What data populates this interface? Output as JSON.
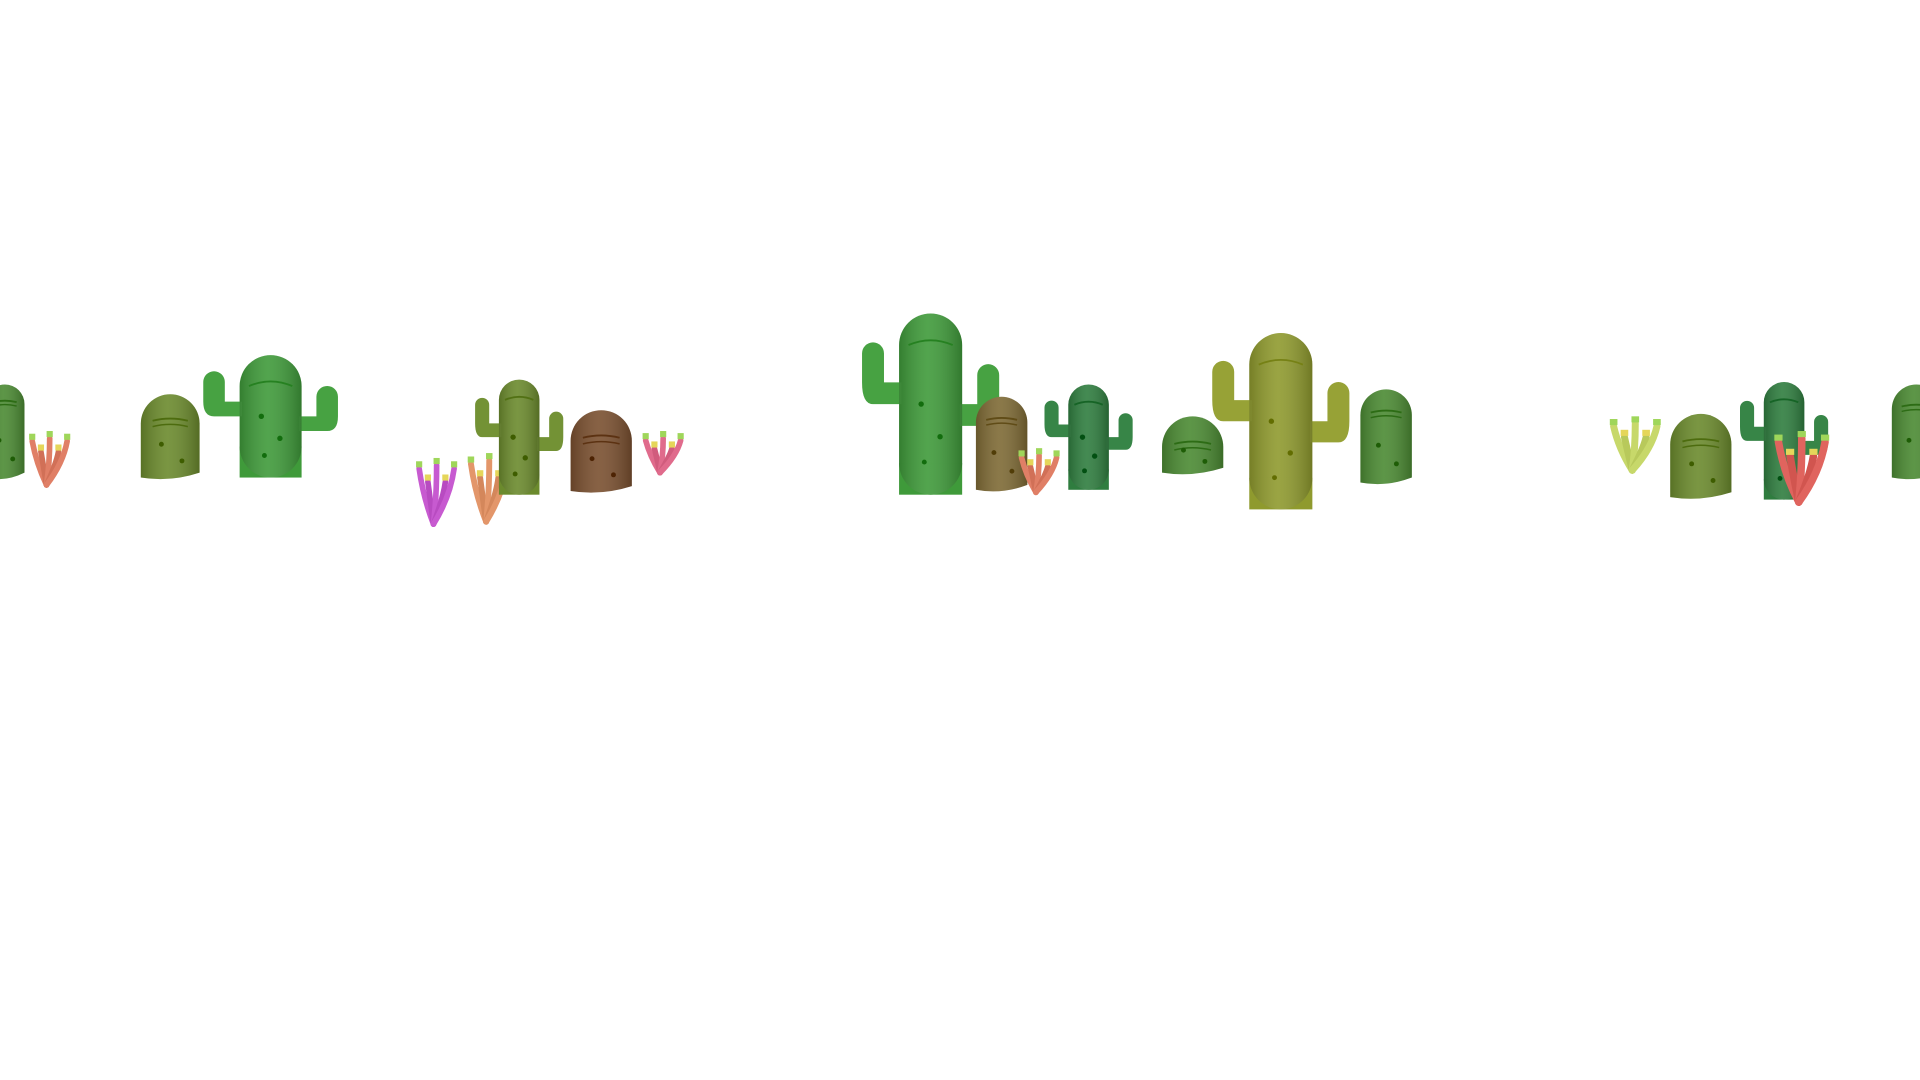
{
  "scene": {
    "background_color": "#ffffff",
    "description_free": true,
    "palette": {
      "green_bright": "#3f9a3a",
      "green_mid": "#4b8a33",
      "green_olive": "#6b8a2d",
      "green_dark": "#2f7d3f",
      "olive_yellow": "#8f9a2e",
      "brown": "#7a5030",
      "brown_olive": "#7e6a35",
      "coral": "#e07f66",
      "coral_red": "#e0645e",
      "pink": "#e06b8c",
      "purple": "#c75ad0",
      "peach": "#e3966a",
      "lime": "#c7d86a",
      "tip_green": "#9fd65a",
      "tip_yellow": "#e5d65a"
    },
    "objects": [
      {
        "kind": "barrel-cactus",
        "name": "barrel-cactus-1",
        "color": "green_mid"
      },
      {
        "kind": "coral-plant",
        "name": "coral-plant-1",
        "color": "coral"
      },
      {
        "kind": "barrel-cactus",
        "name": "barrel-cactus-2",
        "color": "green_olive"
      },
      {
        "kind": "saguaro-cactus",
        "name": "saguaro-cactus-1",
        "color": "green_bright"
      },
      {
        "kind": "coral-plant",
        "name": "coral-plant-2",
        "color": "purple"
      },
      {
        "kind": "coral-plant",
        "name": "coral-plant-3",
        "color": "peach"
      },
      {
        "kind": "saguaro-cactus",
        "name": "saguaro-cactus-2",
        "color": "green_olive"
      },
      {
        "kind": "barrel-cactus",
        "name": "barrel-cactus-3",
        "color": "brown"
      },
      {
        "kind": "coral-plant",
        "name": "coral-plant-4",
        "color": "pink"
      },
      {
        "kind": "saguaro-cactus",
        "name": "saguaro-cactus-3",
        "color": "green_bright"
      },
      {
        "kind": "barrel-cactus",
        "name": "barrel-cactus-4",
        "color": "brown_olive"
      },
      {
        "kind": "coral-plant",
        "name": "coral-plant-5",
        "color": "coral"
      },
      {
        "kind": "saguaro-cactus",
        "name": "saguaro-cactus-4",
        "color": "green_dark"
      },
      {
        "kind": "barrel-cactus",
        "name": "barrel-cactus-5",
        "color": "green_mid"
      },
      {
        "kind": "saguaro-cactus",
        "name": "saguaro-cactus-5",
        "color": "olive_yellow"
      },
      {
        "kind": "barrel-cactus",
        "name": "barrel-cactus-6",
        "color": "green_mid"
      },
      {
        "kind": "coral-plant",
        "name": "coral-plant-6",
        "color": "lime"
      },
      {
        "kind": "barrel-cactus",
        "name": "barrel-cactus-7",
        "color": "green_olive"
      },
      {
        "kind": "saguaro-cactus",
        "name": "saguaro-cactus-6",
        "color": "green_dark"
      },
      {
        "kind": "coral-plant",
        "name": "coral-plant-7",
        "color": "coral_red"
      },
      {
        "kind": "barrel-cactus",
        "name": "barrel-cactus-8",
        "color": "green_mid"
      }
    ]
  }
}
